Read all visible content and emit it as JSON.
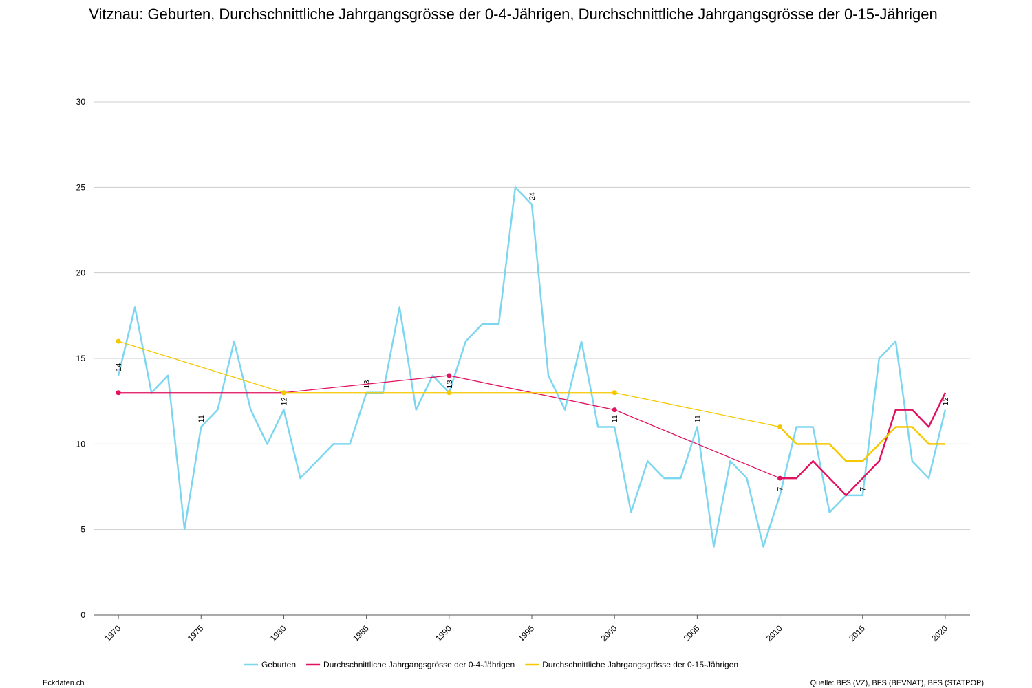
{
  "chart_data": {
    "type": "line",
    "title": "Vitznau: Geburten, Durchschnittliche Jahrgangsgrösse der 0-4-Jährigen, Durchschnittliche Jahrgangsgrösse der 0-15-Jährigen",
    "source": "Quelle: BFS (VZ), BFS (BEVNAT), BFS (STATPOP)",
    "site": "Eckdaten.ch",
    "xlim": [
      1968.5,
      2021.5
    ],
    "xticks": [
      1970,
      1975,
      1980,
      1985,
      1990,
      1995,
      2000,
      2005,
      2010,
      2015,
      2020
    ],
    "ylim": [
      0,
      30
    ],
    "yticks": [
      0,
      5,
      10,
      15,
      20,
      25,
      30
    ],
    "grid": true,
    "legend": "bottom",
    "series": [
      {
        "name": "Geburten",
        "color": "#7dd6f0",
        "data_labels": true,
        "x": [
          1970,
          1971,
          1972,
          1973,
          1974,
          1975,
          1976,
          1977,
          1978,
          1979,
          1980,
          1981,
          1982,
          1983,
          1984,
          1985,
          1986,
          1987,
          1988,
          1989,
          1990,
          1991,
          1992,
          1993,
          1994,
          1995,
          1996,
          1997,
          1998,
          1999,
          2000,
          2001,
          2002,
          2003,
          2004,
          2005,
          2006,
          2007,
          2008,
          2009,
          2010,
          2011,
          2012,
          2013,
          2014,
          2015,
          2016,
          2017,
          2018,
          2019,
          2020
        ],
        "values": [
          14,
          18,
          13,
          14,
          5,
          11,
          12,
          16,
          12,
          10,
          12,
          8,
          9,
          10,
          10,
          13,
          13,
          18,
          12,
          14,
          13,
          16,
          17,
          17,
          25,
          24,
          14,
          12,
          16,
          11,
          11,
          6,
          9,
          8,
          8,
          11,
          4,
          9,
          8,
          4,
          7,
          11,
          11,
          6,
          7,
          7,
          15,
          16,
          9,
          8,
          12
        ]
      },
      {
        "name": "Durchschnittliche Jahrgangsgrösse der 0-4-Jährigen",
        "color": "#e0115f",
        "x": [
          1970,
          1980,
          1990,
          2000,
          2010,
          2011,
          2012,
          2013,
          2014,
          2015,
          2016,
          2017,
          2018,
          2019,
          2020
        ],
        "values": [
          13,
          13,
          14,
          12,
          8,
          8,
          9,
          8,
          7,
          8,
          9,
          12,
          12,
          11,
          13
        ]
      },
      {
        "name": "Durchschnittliche Jahrgangsgrösse der 0-15-Jährigen",
        "color": "#f5c800",
        "x": [
          1970,
          1980,
          1990,
          2000,
          2010,
          2011,
          2012,
          2013,
          2014,
          2015,
          2016,
          2017,
          2018,
          2019,
          2020
        ],
        "values": [
          16,
          13,
          13,
          13,
          11,
          10,
          10,
          10,
          9,
          9,
          10,
          11,
          11,
          10,
          10
        ]
      }
    ]
  }
}
